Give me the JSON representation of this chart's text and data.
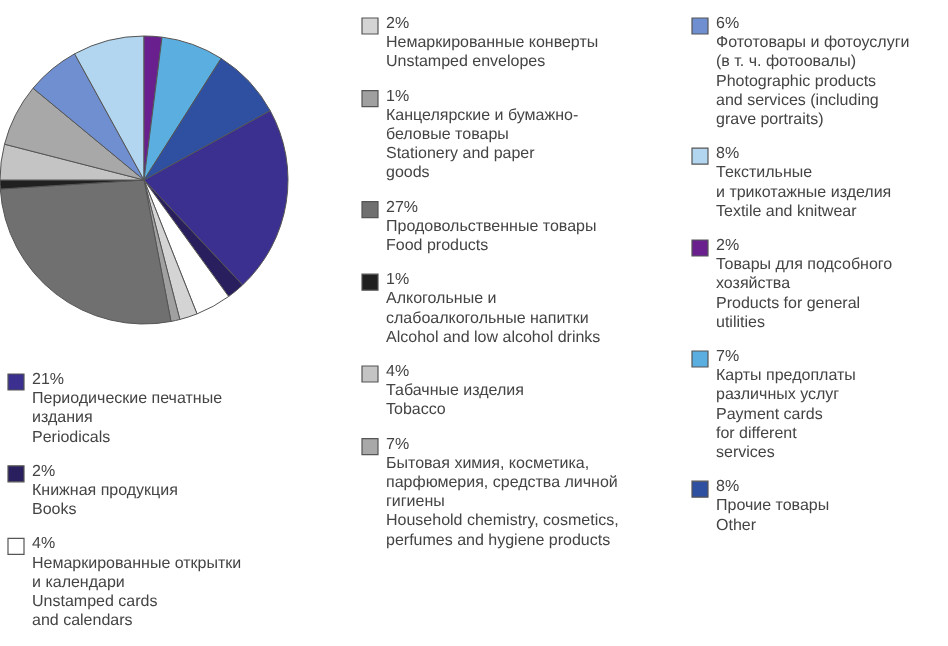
{
  "chart_data": {
    "type": "pie",
    "legend": "right",
    "categories": [
      "Периодические печатные\nиздания\nPeriodicals",
      "Книжная продукция\nBooks",
      "Немаркированные открытки\nи календари\nUnstamped cards\nand calendars",
      "Немаркированные конверты\nUnstamped envelopes",
      "Канцелярские и бумажно-\nбеловые товары\nStationery and paper\ngoods",
      "Продовольственные товары\nFood products",
      "Алкогольные и\nслабоалкогольные напитки\nAlcohol and low alcohol drinks",
      "Табачные изделия\nTobacco",
      "Бытовая химия, косметика,\nпарфюмерия, средства личной\nгигиены\nHousehold chemistry, cosmetics,\nperfumes and hygiene products",
      "Фототовары и фотоуслуги\n(в т. ч. фотоовалы)\nPhotographic products\nand services (including\ngrave portraits)",
      "Текстильные\nи трикотажные изделия\nTextile and knitwear",
      "Товары для подсобного\nхозяйства\nProducts for general\nutilities",
      "Карты предоплаты\nразличных услуг\nPayment cards\nfor different\nservices",
      "Прочие товары\nOther"
    ],
    "values": [
      21,
      2,
      4,
      2,
      1,
      27,
      1,
      4,
      7,
      6,
      8,
      2,
      7,
      8
    ],
    "value_labels": [
      "21%",
      "2%",
      "4%",
      "2%",
      "1%",
      "27%",
      "1%",
      "4%",
      "7%",
      "6%",
      "8%",
      "2%",
      "7%",
      "8%"
    ],
    "colors": [
      "#3b2f8f",
      "#2a1f5e",
      "#ffffff",
      "#d4d4d4",
      "#a0a0a0",
      "#707070",
      "#202020",
      "#c4c4c4",
      "#a8a8a8",
      "#6f8fd0",
      "#b3d6f0",
      "#6a1f8f",
      "#5aaee0",
      "#2f4fa0"
    ]
  }
}
